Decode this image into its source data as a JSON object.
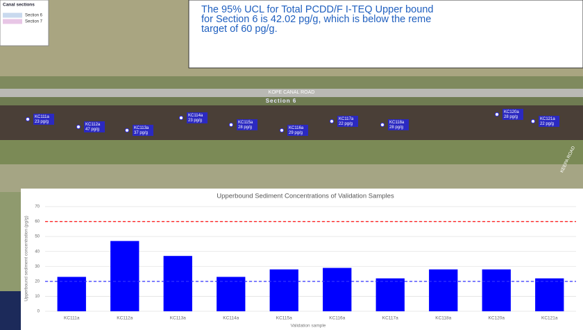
{
  "legend_box": {
    "title": "Canal sections",
    "items": [
      {
        "label": "Section 6",
        "color": "#c9d9ee"
      },
      {
        "label": "Section 7",
        "color": "#e8c6e6"
      }
    ]
  },
  "callout": {
    "lines": [
      "The 95% UCL for Total PCDD/F I-TEQ Upper bound",
      "for Section 6 is 42.02 pg/g, which is below the reme",
      "target of 60 pg/g."
    ]
  },
  "map": {
    "road_label": "KOPE CANAL ROAD",
    "section_label": "Section 6",
    "side_road_label": "KEEPA ROAD",
    "samples": [
      {
        "id": "KC111a",
        "label": "23 pg/g"
      },
      {
        "id": "KC112a",
        "label": "47 pg/g"
      },
      {
        "id": "KC113a",
        "label": "37 pg/g"
      },
      {
        "id": "KC114a",
        "label": "23 pg/g"
      },
      {
        "id": "KC115a",
        "label": "28 pg/g"
      },
      {
        "id": "KC116a",
        "label": "29 pg/g"
      },
      {
        "id": "KC117a",
        "label": "22 pg/g"
      },
      {
        "id": "KC118a",
        "label": "28 pg/g"
      },
      {
        "id": "KC120a",
        "label": "28 pg/g"
      },
      {
        "id": "KC121a",
        "label": "22 pg/g"
      }
    ]
  },
  "chart_data": {
    "type": "bar",
    "title": "Upperbound Sediment Concentrations of Validation Samples",
    "x_label": "Validation sample",
    "y_label": "Upperbound sediment concentration (pg/g)",
    "categories": [
      "KC111a",
      "KC112a",
      "KC113a",
      "KC114a",
      "KC115a",
      "KC116a",
      "KC117a",
      "KC118a",
      "KC120a",
      "KC121a"
    ],
    "values": [
      23,
      47,
      37,
      23,
      28,
      29,
      22,
      28,
      28,
      22
    ],
    "color": "#0000ff",
    "ylim": [
      0,
      70
    ],
    "yticks": [
      0,
      10,
      20,
      30,
      40,
      50,
      60,
      70
    ],
    "grid": true,
    "reference_lines": [
      {
        "value": 60,
        "color": "#ff2020"
      },
      {
        "value": 20,
        "color": "#3030ff"
      }
    ]
  }
}
